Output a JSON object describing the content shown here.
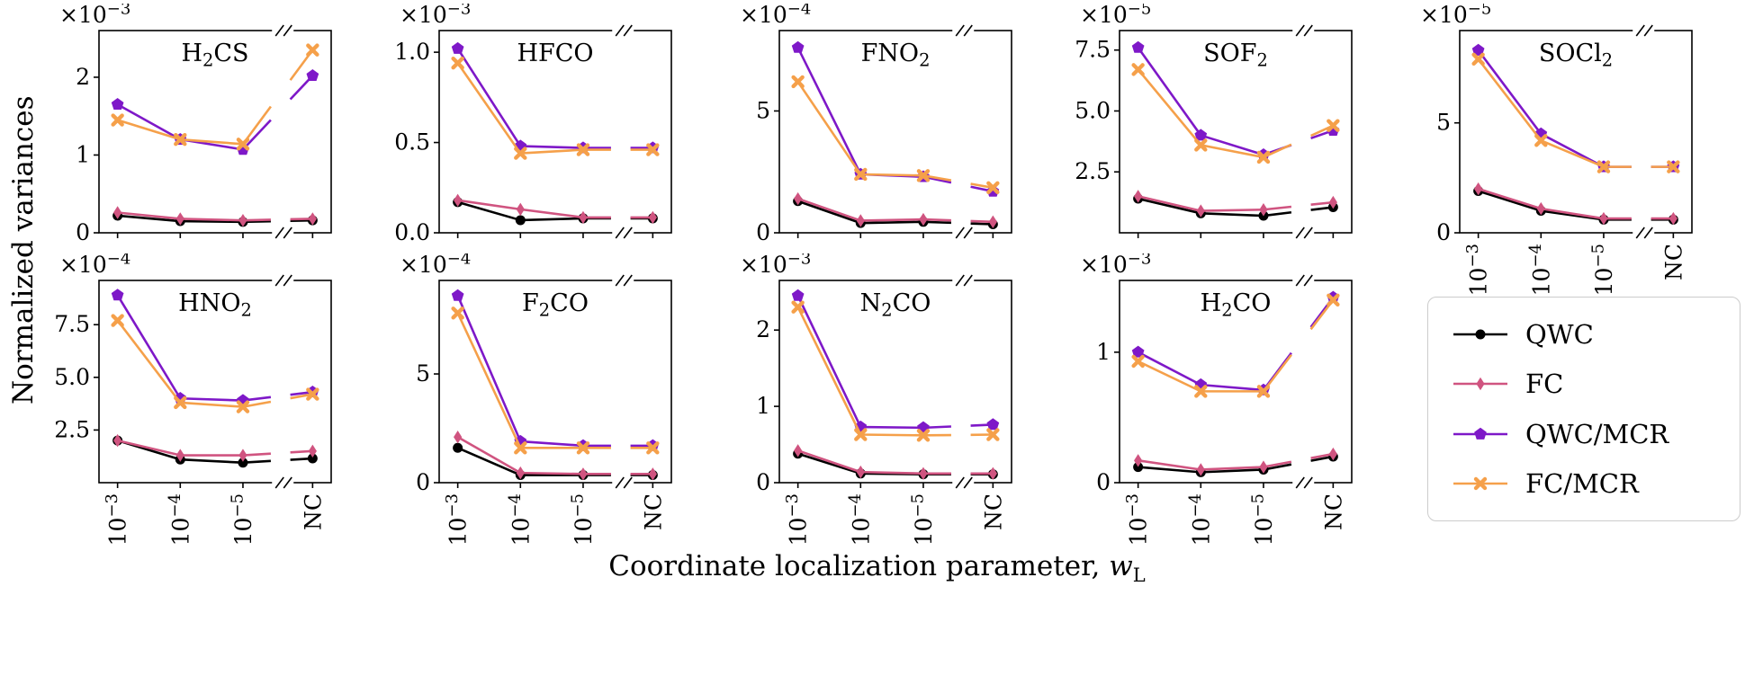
{
  "figure": {
    "ylabel": "Normalized variances",
    "xlabel_prefix": "Coordinate localization parameter, ",
    "xlabel_var": "w",
    "xlabel_sub": "L"
  },
  "legend": {
    "entries": [
      {
        "label": "QWC",
        "color": "#000000",
        "marker": "circle"
      },
      {
        "label": "FC",
        "color": "#d05480",
        "marker": "diamond"
      },
      {
        "label": "QWC/MCR",
        "color": "#7e18c8",
        "marker": "pentagon"
      },
      {
        "label": "FC/MCR",
        "color": "#f5a04a",
        "marker": "x"
      }
    ]
  },
  "chart_data": [
    {
      "type": "line",
      "title": "H_{2}CS",
      "exp_label": "×10^{−3}",
      "x_categories": [
        "10^{−3}",
        "10^{−4}",
        "10^{−5}",
        "NC"
      ],
      "yticks": [
        "0",
        "1",
        "2"
      ],
      "ylim": [
        0,
        2.6
      ],
      "show_x_labels": false,
      "series": [
        {
          "name": "QWC",
          "values": [
            0.22,
            0.15,
            0.14,
            0.16
          ]
        },
        {
          "name": "FC",
          "values": [
            0.26,
            0.18,
            0.16,
            0.18
          ]
        },
        {
          "name": "QWC/MCR",
          "values": [
            1.65,
            1.2,
            1.07,
            2.02
          ]
        },
        {
          "name": "FC/MCR",
          "values": [
            1.45,
            1.2,
            1.14,
            2.35
          ]
        }
      ]
    },
    {
      "type": "line",
      "title": "HFCO",
      "exp_label": "×10^{−3}",
      "x_categories": [
        "10^{−3}",
        "10^{−4}",
        "10^{−5}",
        "NC"
      ],
      "yticks": [
        "0.0",
        "0.5",
        "1.0"
      ],
      "ylim": [
        0,
        1.12
      ],
      "show_x_labels": false,
      "series": [
        {
          "name": "QWC",
          "values": [
            0.17,
            0.07,
            0.08,
            0.08
          ]
        },
        {
          "name": "FC",
          "values": [
            0.18,
            0.13,
            0.085,
            0.085
          ]
        },
        {
          "name": "QWC/MCR",
          "values": [
            1.02,
            0.48,
            0.47,
            0.47
          ]
        },
        {
          "name": "FC/MCR",
          "values": [
            0.94,
            0.44,
            0.46,
            0.46
          ]
        }
      ]
    },
    {
      "type": "line",
      "title": "FNO_{2}",
      "exp_label": "×10^{−4}",
      "x_categories": [
        "10^{−3}",
        "10^{−4}",
        "10^{−5}",
        "NC"
      ],
      "yticks": [
        "0",
        "5"
      ],
      "ylim": [
        0,
        8.3
      ],
      "show_x_labels": false,
      "series": [
        {
          "name": "QWC",
          "values": [
            1.3,
            0.4,
            0.45,
            0.35
          ]
        },
        {
          "name": "FC",
          "values": [
            1.4,
            0.5,
            0.55,
            0.45
          ]
        },
        {
          "name": "QWC/MCR",
          "values": [
            7.6,
            2.4,
            2.3,
            1.7
          ]
        },
        {
          "name": "FC/MCR",
          "values": [
            6.2,
            2.4,
            2.35,
            1.85
          ]
        }
      ]
    },
    {
      "type": "line",
      "title": "SOF_{2}",
      "exp_label": "×10^{−5}",
      "x_categories": [
        "10^{−3}",
        "10^{−4}",
        "10^{−5}",
        "NC"
      ],
      "yticks": [
        "2.5",
        "5.0",
        "7.5"
      ],
      "ylim": [
        0,
        8.3
      ],
      "show_x_labels": false,
      "series": [
        {
          "name": "QWC",
          "values": [
            1.4,
            0.8,
            0.7,
            1.05
          ]
        },
        {
          "name": "FC",
          "values": [
            1.5,
            0.9,
            0.95,
            1.25
          ]
        },
        {
          "name": "QWC/MCR",
          "values": [
            7.6,
            4.0,
            3.2,
            4.2
          ]
        },
        {
          "name": "FC/MCR",
          "values": [
            6.7,
            3.6,
            3.1,
            4.4
          ]
        }
      ]
    },
    {
      "type": "line",
      "title": "SOCl_{2}",
      "exp_label": "×10^{−5}",
      "x_categories": [
        "10^{−3}",
        "10^{−4}",
        "10^{−5}",
        "NC"
      ],
      "yticks": [
        "0",
        "5"
      ],
      "ylim": [
        0,
        9.2
      ],
      "show_x_labels": true,
      "series": [
        {
          "name": "QWC",
          "values": [
            1.9,
            1.0,
            0.6,
            0.6
          ]
        },
        {
          "name": "FC",
          "values": [
            2.0,
            1.1,
            0.65,
            0.65
          ]
        },
        {
          "name": "QWC/MCR",
          "values": [
            8.3,
            4.5,
            3.0,
            3.0
          ]
        },
        {
          "name": "FC/MCR",
          "values": [
            7.9,
            4.2,
            3.0,
            3.0
          ]
        }
      ]
    },
    {
      "type": "line",
      "title": "HNO_{2}",
      "exp_label": "×10^{−4}",
      "x_categories": [
        "10^{−3}",
        "10^{−4}",
        "10^{−5}",
        "NC"
      ],
      "yticks": [
        "2.5",
        "5.0",
        "7.5"
      ],
      "ylim": [
        0,
        9.6
      ],
      "show_x_labels": true,
      "series": [
        {
          "name": "QWC",
          "values": [
            2.0,
            1.1,
            0.95,
            1.15
          ]
        },
        {
          "name": "FC",
          "values": [
            2.0,
            1.3,
            1.3,
            1.5
          ]
        },
        {
          "name": "QWC/MCR",
          "values": [
            8.9,
            4.0,
            3.9,
            4.3
          ]
        },
        {
          "name": "FC/MCR",
          "values": [
            7.7,
            3.8,
            3.6,
            4.2
          ]
        }
      ]
    },
    {
      "type": "line",
      "title": "F_{2}CO",
      "exp_label": "×10^{−4}",
      "x_categories": [
        "10^{−3}",
        "10^{−4}",
        "10^{−5}",
        "NC"
      ],
      "yticks": [
        "0",
        "5"
      ],
      "ylim": [
        0,
        9.3
      ],
      "show_x_labels": true,
      "series": [
        {
          "name": "QWC",
          "values": [
            1.6,
            0.35,
            0.35,
            0.35
          ]
        },
        {
          "name": "FC",
          "values": [
            2.1,
            0.45,
            0.4,
            0.4
          ]
        },
        {
          "name": "QWC/MCR",
          "values": [
            8.6,
            1.9,
            1.7,
            1.7
          ]
        },
        {
          "name": "FC/MCR",
          "values": [
            7.8,
            1.6,
            1.6,
            1.6
          ]
        }
      ]
    },
    {
      "type": "line",
      "title": "N_{2}CO",
      "exp_label": "×10^{−3}",
      "x_categories": [
        "10^{−3}",
        "10^{−4}",
        "10^{−5}",
        "NC"
      ],
      "yticks": [
        "0",
        "1",
        "2"
      ],
      "ylim": [
        0,
        2.65
      ],
      "show_x_labels": true,
      "series": [
        {
          "name": "QWC",
          "values": [
            0.38,
            0.12,
            0.11,
            0.11
          ]
        },
        {
          "name": "FC",
          "values": [
            0.42,
            0.14,
            0.12,
            0.12
          ]
        },
        {
          "name": "QWC/MCR",
          "values": [
            2.45,
            0.73,
            0.72,
            0.76
          ]
        },
        {
          "name": "FC/MCR",
          "values": [
            2.3,
            0.63,
            0.62,
            0.63
          ]
        }
      ]
    },
    {
      "type": "line",
      "title": "H_{2}CO",
      "exp_label": "×10^{−3}",
      "x_categories": [
        "10^{−3}",
        "10^{−4}",
        "10^{−5}",
        "NC"
      ],
      "yticks": [
        "0",
        "1"
      ],
      "ylim": [
        0,
        1.55
      ],
      "show_x_labels": true,
      "series": [
        {
          "name": "QWC",
          "values": [
            0.12,
            0.08,
            0.1,
            0.2
          ]
        },
        {
          "name": "FC",
          "values": [
            0.17,
            0.1,
            0.12,
            0.22
          ]
        },
        {
          "name": "QWC/MCR",
          "values": [
            1.0,
            0.75,
            0.71,
            1.42
          ]
        },
        {
          "name": "FC/MCR",
          "values": [
            0.93,
            0.7,
            0.7,
            1.4
          ]
        }
      ]
    }
  ]
}
